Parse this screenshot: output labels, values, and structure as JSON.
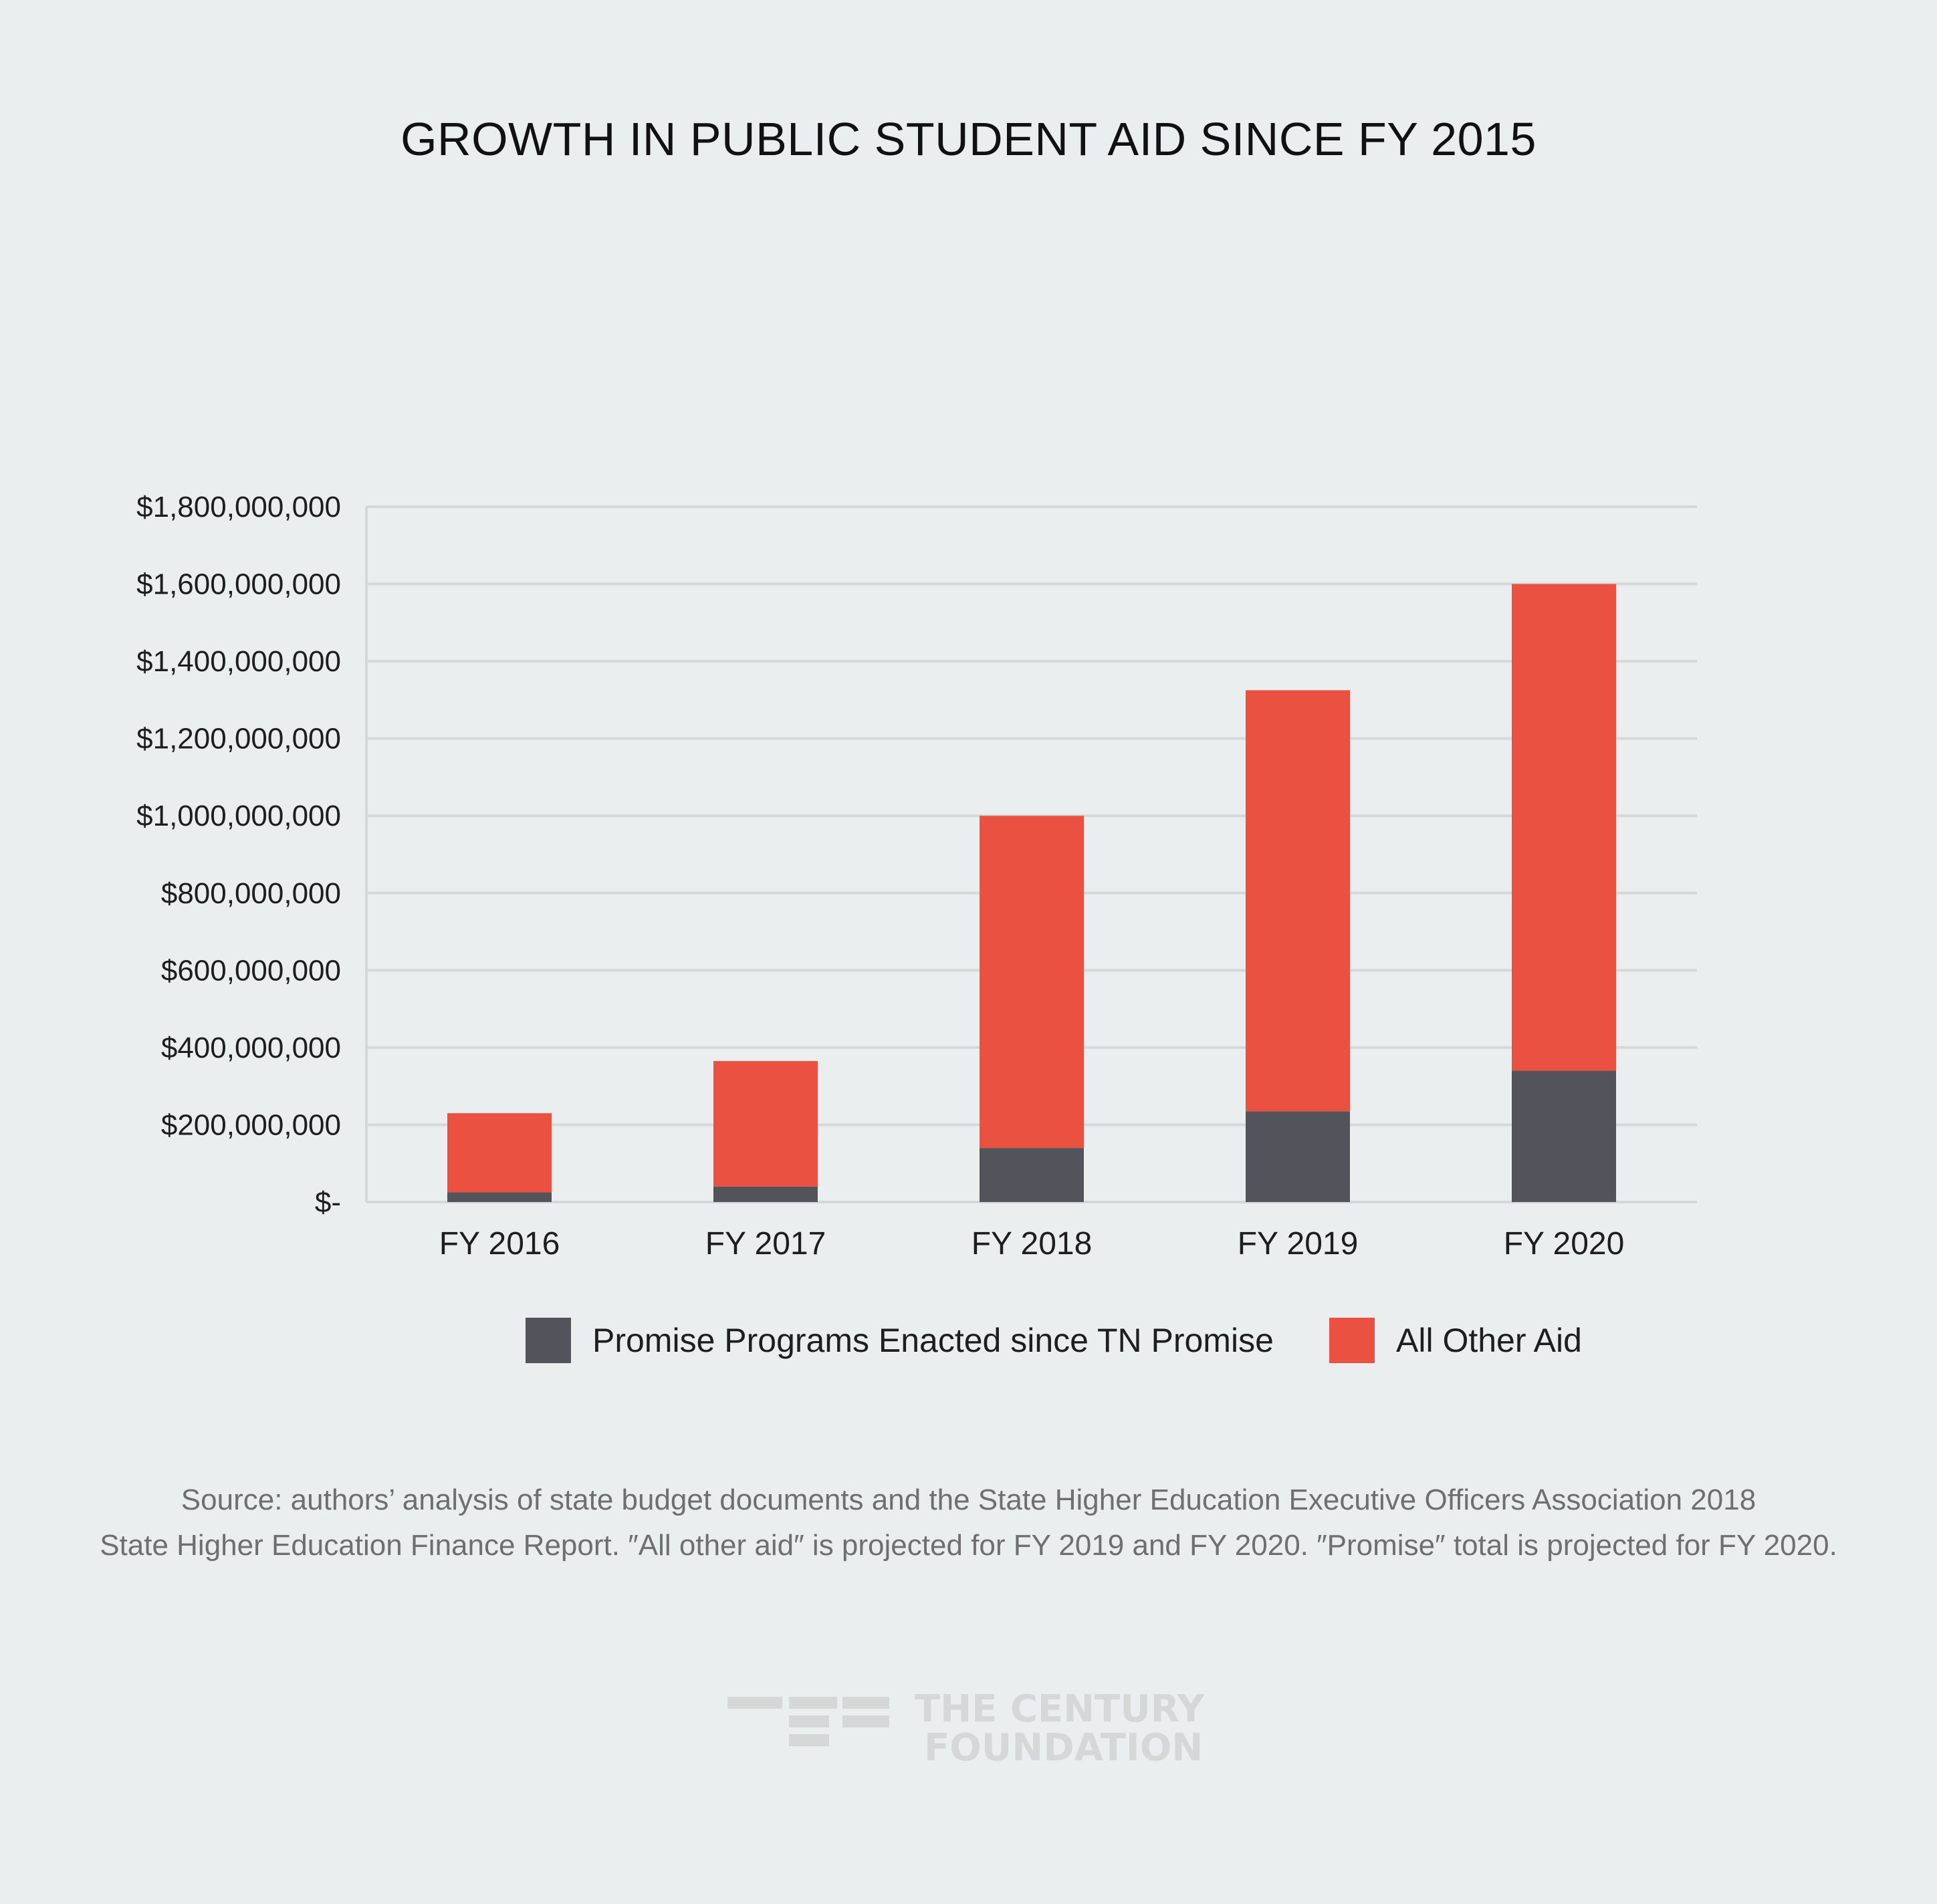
{
  "chart_data": {
    "type": "bar",
    "stacked": true,
    "title": "GROWTH IN PUBLIC STUDENT AID SINCE FY 2015",
    "xlabel": "",
    "ylabel": "",
    "categories": [
      "FY 2016",
      "FY 2017",
      "FY 2018",
      "FY 2019",
      "FY 2020"
    ],
    "series": [
      {
        "name": "Promise Programs Enacted since TN Promise",
        "color": "#52535b",
        "values": [
          25000000,
          40000000,
          140000000,
          235000000,
          340000000
        ]
      },
      {
        "name": "All Other Aid",
        "color": "#eb5140",
        "values": [
          205000000,
          325000000,
          860000000,
          1090000000,
          1260000000
        ]
      }
    ],
    "ylim": [
      0,
      1800000000
    ],
    "yticks": [
      0,
      200000000,
      400000000,
      600000000,
      800000000,
      1000000000,
      1200000000,
      1400000000,
      1600000000,
      1800000000
    ],
    "ytick_labels": [
      "$-",
      "$200,000,000",
      "$400,000,000",
      "$600,000,000",
      "$800,000,000",
      "$1,000,000,000",
      "$1,200,000,000",
      "$1,400,000,000",
      "$1,600,000,000",
      "$1,800,000,000"
    ],
    "grid": true,
    "legend_position": "bottom"
  },
  "source_note": {
    "line1": "Source: authors’ analysis of state budget documents and the State Higher Education Executive Officers Association 2018",
    "line2": "State Higher Education Finance Report. ″All other aid″ is projected for FY 2019 and FY 2020. ″Promise″ total is projected for FY 2020."
  },
  "logo": {
    "line1": "THE CENTURY",
    "line2": "FOUNDATION",
    "color": "#d6d8d8"
  },
  "colors": {
    "background": "#ebeeee",
    "gridline": "#d5d8d8"
  }
}
